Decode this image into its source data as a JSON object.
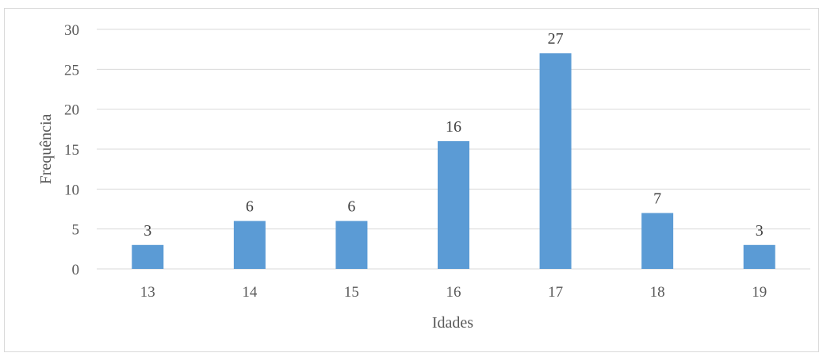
{
  "chart_data": {
    "type": "bar",
    "title": "",
    "xlabel": "Idades",
    "ylabel": "Frequência",
    "categories": [
      "13",
      "14",
      "15",
      "16",
      "17",
      "18",
      "19"
    ],
    "values": [
      3,
      6,
      6,
      16,
      27,
      7,
      3
    ],
    "ylim": [
      0,
      30
    ],
    "yticks": [
      0,
      5,
      10,
      15,
      20,
      25,
      30
    ],
    "grid": true,
    "legend": "none",
    "bar_color": "#5b9bd5",
    "grid_color": "#d9d9d9"
  }
}
